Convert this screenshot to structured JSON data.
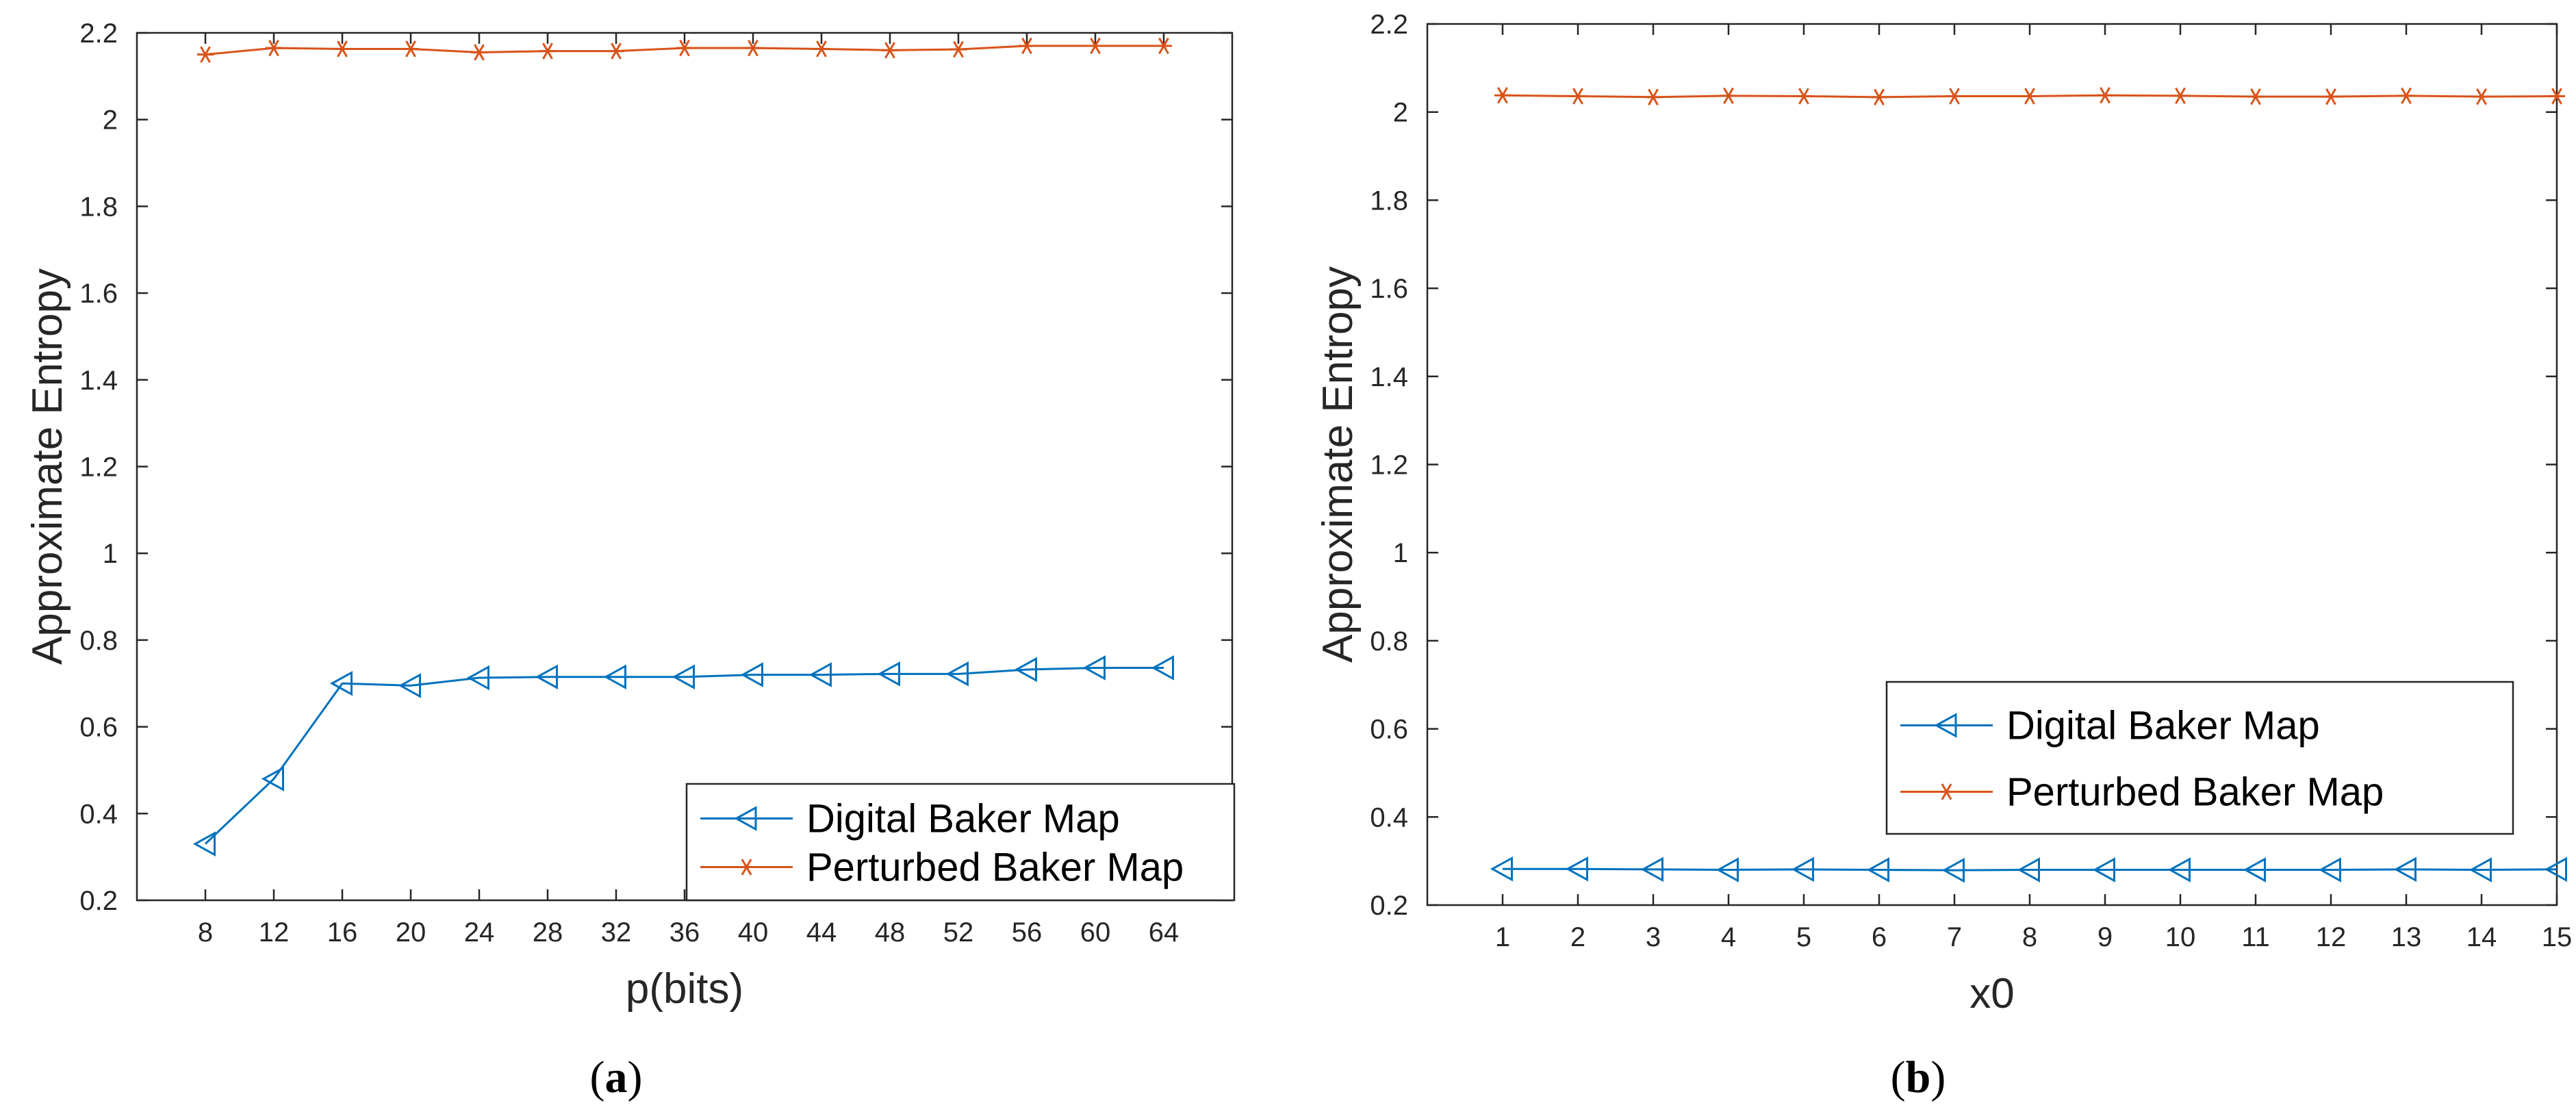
{
  "colors": {
    "digital": "#0072BD",
    "perturbed": "#D95319",
    "axis": "#262626"
  },
  "chart_data": [
    {
      "type": "line",
      "caption_letter": "a",
      "xlabel": "p(bits)",
      "ylabel": "Approximate Entropy",
      "ylim": [
        0.2,
        2.2
      ],
      "yticks": [
        0.2,
        0.4,
        0.6,
        0.8,
        1,
        1.2,
        1.4,
        1.6,
        1.8,
        2,
        2.2
      ],
      "xlim": [
        4,
        68
      ],
      "x": [
        8,
        12,
        16,
        20,
        24,
        28,
        32,
        36,
        40,
        44,
        48,
        52,
        56,
        60,
        64
      ],
      "legend": "bottom-right",
      "series": [
        {
          "name": "Digital Baker Map",
          "marker": "triangle-left",
          "values": [
            0.33,
            0.48,
            0.7,
            0.695,
            0.713,
            0.715,
            0.715,
            0.715,
            0.72,
            0.72,
            0.722,
            0.722,
            0.732,
            0.736,
            0.736
          ]
        },
        {
          "name": "Perturbed Baker Map",
          "marker": "asterisk",
          "values": [
            2.15,
            2.165,
            2.163,
            2.163,
            2.155,
            2.158,
            2.158,
            2.165,
            2.165,
            2.163,
            2.16,
            2.162,
            2.17,
            2.17,
            2.17
          ]
        }
      ]
    },
    {
      "type": "line",
      "caption_letter": "b",
      "xlabel": "x0",
      "ylabel": "Approximate Entropy",
      "ylim": [
        0.2,
        2.2
      ],
      "yticks": [
        0.2,
        0.4,
        0.6,
        0.8,
        1,
        1.2,
        1.4,
        1.6,
        1.8,
        2,
        2.2
      ],
      "xlim": [
        0,
        15
      ],
      "x": [
        1,
        2,
        3,
        4,
        5,
        6,
        7,
        8,
        9,
        10,
        11,
        12,
        13,
        14,
        15
      ],
      "legend": "center-right",
      "series": [
        {
          "name": "Digital Baker Map",
          "marker": "triangle-left",
          "values": [
            0.282,
            0.282,
            0.281,
            0.28,
            0.281,
            0.28,
            0.279,
            0.28,
            0.28,
            0.28,
            0.28,
            0.28,
            0.281,
            0.28,
            0.281
          ]
        },
        {
          "name": "Perturbed Baker Map",
          "marker": "asterisk",
          "values": [
            2.038,
            2.036,
            2.034,
            2.037,
            2.036,
            2.034,
            2.036,
            2.036,
            2.038,
            2.037,
            2.035,
            2.035,
            2.037,
            2.035,
            2.036
          ]
        }
      ]
    }
  ]
}
